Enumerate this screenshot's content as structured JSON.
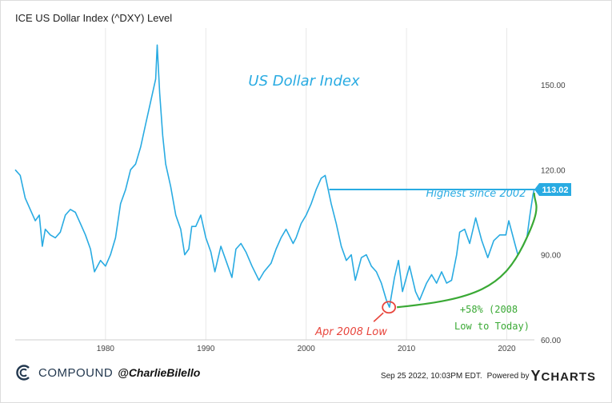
{
  "chart_data": {
    "type": "line",
    "title": "ICE US Dollar Index (^DXY) Level",
    "plot_label": "US Dollar Index",
    "x_range": [
      1971.0,
      2022.75
    ],
    "ylim": [
      60,
      170
    ],
    "x_ticks": [
      {
        "v": 1980,
        "label": "1980"
      },
      {
        "v": 1990,
        "label": "1990"
      },
      {
        "v": 2000,
        "label": "2000"
      },
      {
        "v": 2010,
        "label": "2010"
      },
      {
        "v": 2020,
        "label": "2020"
      }
    ],
    "y_ticks": [
      {
        "v": 60,
        "label": "60.00"
      },
      {
        "v": 90,
        "label": "90.00"
      },
      {
        "v": 120,
        "label": "120.00"
      },
      {
        "v": 150,
        "label": "150.00"
      }
    ],
    "series": [
      {
        "color": "#29abe2",
        "points": [
          [
            1971.0,
            120
          ],
          [
            1971.5,
            118
          ],
          [
            1972.0,
            110
          ],
          [
            1972.5,
            106
          ],
          [
            1973.0,
            102
          ],
          [
            1973.4,
            104
          ],
          [
            1973.7,
            93
          ],
          [
            1974.0,
            99
          ],
          [
            1974.5,
            97
          ],
          [
            1975.0,
            96
          ],
          [
            1975.5,
            98
          ],
          [
            1976.0,
            104
          ],
          [
            1976.5,
            106
          ],
          [
            1977.0,
            105
          ],
          [
            1977.5,
            101
          ],
          [
            1978.0,
            97
          ],
          [
            1978.5,
            92
          ],
          [
            1978.9,
            84
          ],
          [
            1979.5,
            88
          ],
          [
            1980.0,
            86
          ],
          [
            1980.5,
            90
          ],
          [
            1981.0,
            96
          ],
          [
            1981.5,
            108
          ],
          [
            1982.0,
            113
          ],
          [
            1982.5,
            120
          ],
          [
            1983.0,
            122
          ],
          [
            1983.5,
            128
          ],
          [
            1984.0,
            136
          ],
          [
            1984.5,
            144
          ],
          [
            1985.0,
            152
          ],
          [
            1985.15,
            164
          ],
          [
            1985.4,
            147
          ],
          [
            1985.7,
            132
          ],
          [
            1986.0,
            122
          ],
          [
            1986.5,
            114
          ],
          [
            1987.0,
            104
          ],
          [
            1987.5,
            99
          ],
          [
            1987.9,
            90
          ],
          [
            1988.3,
            92
          ],
          [
            1988.6,
            100
          ],
          [
            1989.0,
            100
          ],
          [
            1989.5,
            104
          ],
          [
            1990.0,
            96
          ],
          [
            1990.5,
            91
          ],
          [
            1990.9,
            84
          ],
          [
            1991.5,
            93
          ],
          [
            1992.0,
            88
          ],
          [
            1992.6,
            82
          ],
          [
            1993.0,
            92
          ],
          [
            1993.5,
            94
          ],
          [
            1994.0,
            91
          ],
          [
            1994.6,
            86
          ],
          [
            1995.3,
            81
          ],
          [
            1995.8,
            84
          ],
          [
            1996.5,
            87
          ],
          [
            1997.0,
            92
          ],
          [
            1997.5,
            96
          ],
          [
            1998.0,
            99
          ],
          [
            1998.7,
            94
          ],
          [
            1999.0,
            96
          ],
          [
            1999.5,
            101
          ],
          [
            2000.0,
            104
          ],
          [
            2000.5,
            108
          ],
          [
            2001.0,
            113
          ],
          [
            2001.5,
            117
          ],
          [
            2001.9,
            118
          ],
          [
            2002.5,
            108
          ],
          [
            2003.0,
            101
          ],
          [
            2003.5,
            93
          ],
          [
            2004.0,
            88
          ],
          [
            2004.5,
            90
          ],
          [
            2004.9,
            81
          ],
          [
            2005.5,
            89
          ],
          [
            2006.0,
            90
          ],
          [
            2006.5,
            86
          ],
          [
            2007.0,
            84
          ],
          [
            2007.5,
            80
          ],
          [
            2008.0,
            74
          ],
          [
            2008.3,
            71.5
          ],
          [
            2008.8,
            82
          ],
          [
            2009.2,
            88
          ],
          [
            2009.6,
            77
          ],
          [
            2010.3,
            86
          ],
          [
            2010.9,
            77
          ],
          [
            2011.3,
            74
          ],
          [
            2012.0,
            80
          ],
          [
            2012.5,
            83
          ],
          [
            2013.0,
            80
          ],
          [
            2013.5,
            84
          ],
          [
            2014.0,
            80
          ],
          [
            2014.5,
            81
          ],
          [
            2015.0,
            90
          ],
          [
            2015.3,
            98
          ],
          [
            2015.8,
            99
          ],
          [
            2016.3,
            94
          ],
          [
            2016.9,
            103
          ],
          [
            2017.5,
            95
          ],
          [
            2018.1,
            89
          ],
          [
            2018.7,
            95
          ],
          [
            2019.3,
            97
          ],
          [
            2019.9,
            97
          ],
          [
            2020.2,
            102
          ],
          [
            2020.8,
            94
          ],
          [
            2021.1,
            90
          ],
          [
            2021.6,
            93
          ],
          [
            2022.0,
            96
          ],
          [
            2022.3,
            104
          ],
          [
            2022.6,
            111
          ],
          [
            2022.73,
            113
          ]
        ]
      }
    ],
    "last_value": {
      "value": 113.02,
      "label": "113.02"
    },
    "annotations": {
      "highest": {
        "text": "Highest since 2002",
        "y": 113.02,
        "x_start": 2002.3
      },
      "low": {
        "text": "Apr 2008 Low",
        "x": 2008.25,
        "y": 71.5
      },
      "gain_line1": "+58% (2008",
      "gain_line2": "Low to Today)"
    },
    "colors": {
      "series": "#29abe2",
      "low_marker": "#e8453c",
      "gain_curve": "#3aa935",
      "grid": "#e8e8e8"
    }
  },
  "footer": {
    "brand": "COMPOUND",
    "handle": "@CharlieBilello",
    "timestamp": "Sep 25 2022, 10:03PM EDT.",
    "powered_by": "Powered by",
    "provider": "YCHARTS",
    "provider_prefix": "Y",
    "provider_rest": "CHARTS"
  }
}
